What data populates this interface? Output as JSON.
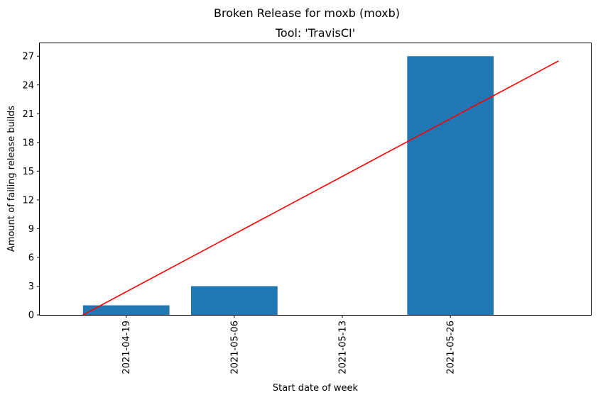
{
  "chart_data": {
    "type": "bar",
    "title": "Broken Release for moxb (moxb)",
    "subtitle": "Tool: 'TravisCI'",
    "xlabel": "Start date of week",
    "ylabel": "Amount of failing release builds",
    "categories": [
      "2021-04-19",
      "2021-05-06",
      "2021-05-13",
      "2021-05-26"
    ],
    "values": [
      1,
      3,
      0,
      27
    ],
    "ylim": [
      0,
      28.35
    ],
    "yticks": [
      0,
      3,
      6,
      9,
      12,
      15,
      18,
      21,
      24,
      27
    ],
    "trendline": {
      "x": [
        -0.5,
        4.0
      ],
      "y": [
        -0.6,
        26.5
      ],
      "color": "#ff0000"
    },
    "bar_color": "#1f77b4",
    "grid": false,
    "legend": "none"
  }
}
